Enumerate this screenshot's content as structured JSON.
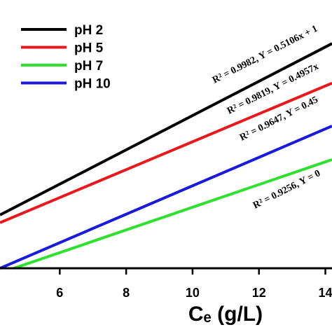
{
  "chart_data": {
    "type": "line",
    "x_label": "Cₑ (g/L)",
    "xlim": [
      4.2,
      14.2
    ],
    "ylim": [
      0,
      8
    ],
    "xticks": [
      6,
      8,
      10,
      12,
      14
    ],
    "legend": "upper left",
    "series": [
      {
        "name": "pH 2",
        "color": "#000000",
        "x": [
          4.2,
          14.2
        ],
        "values": [
          1.59,
          6.7
        ]
      },
      {
        "name": "pH 5",
        "color": "#e8191d",
        "x": [
          4.2,
          14.2
        ],
        "values": [
          1.36,
          5.52
        ]
      },
      {
        "name": "pH 7",
        "color": "#2fe02f",
        "x": [
          4.62,
          14.2
        ],
        "values": [
          0,
          3.24
        ]
      },
      {
        "name": "pH 10",
        "color": "#1a1adb",
        "x": [
          4.2,
          14.2
        ],
        "values": [
          0,
          4.24
        ]
      }
    ],
    "annotations": [
      "R² = 0.9982, Y = 0.5106x + 1",
      "R² = 0.9819, Y = 0.4957x",
      "R² = 0.9647, Y = 0.45",
      "R² = 0.9256, Y = 0"
    ]
  }
}
